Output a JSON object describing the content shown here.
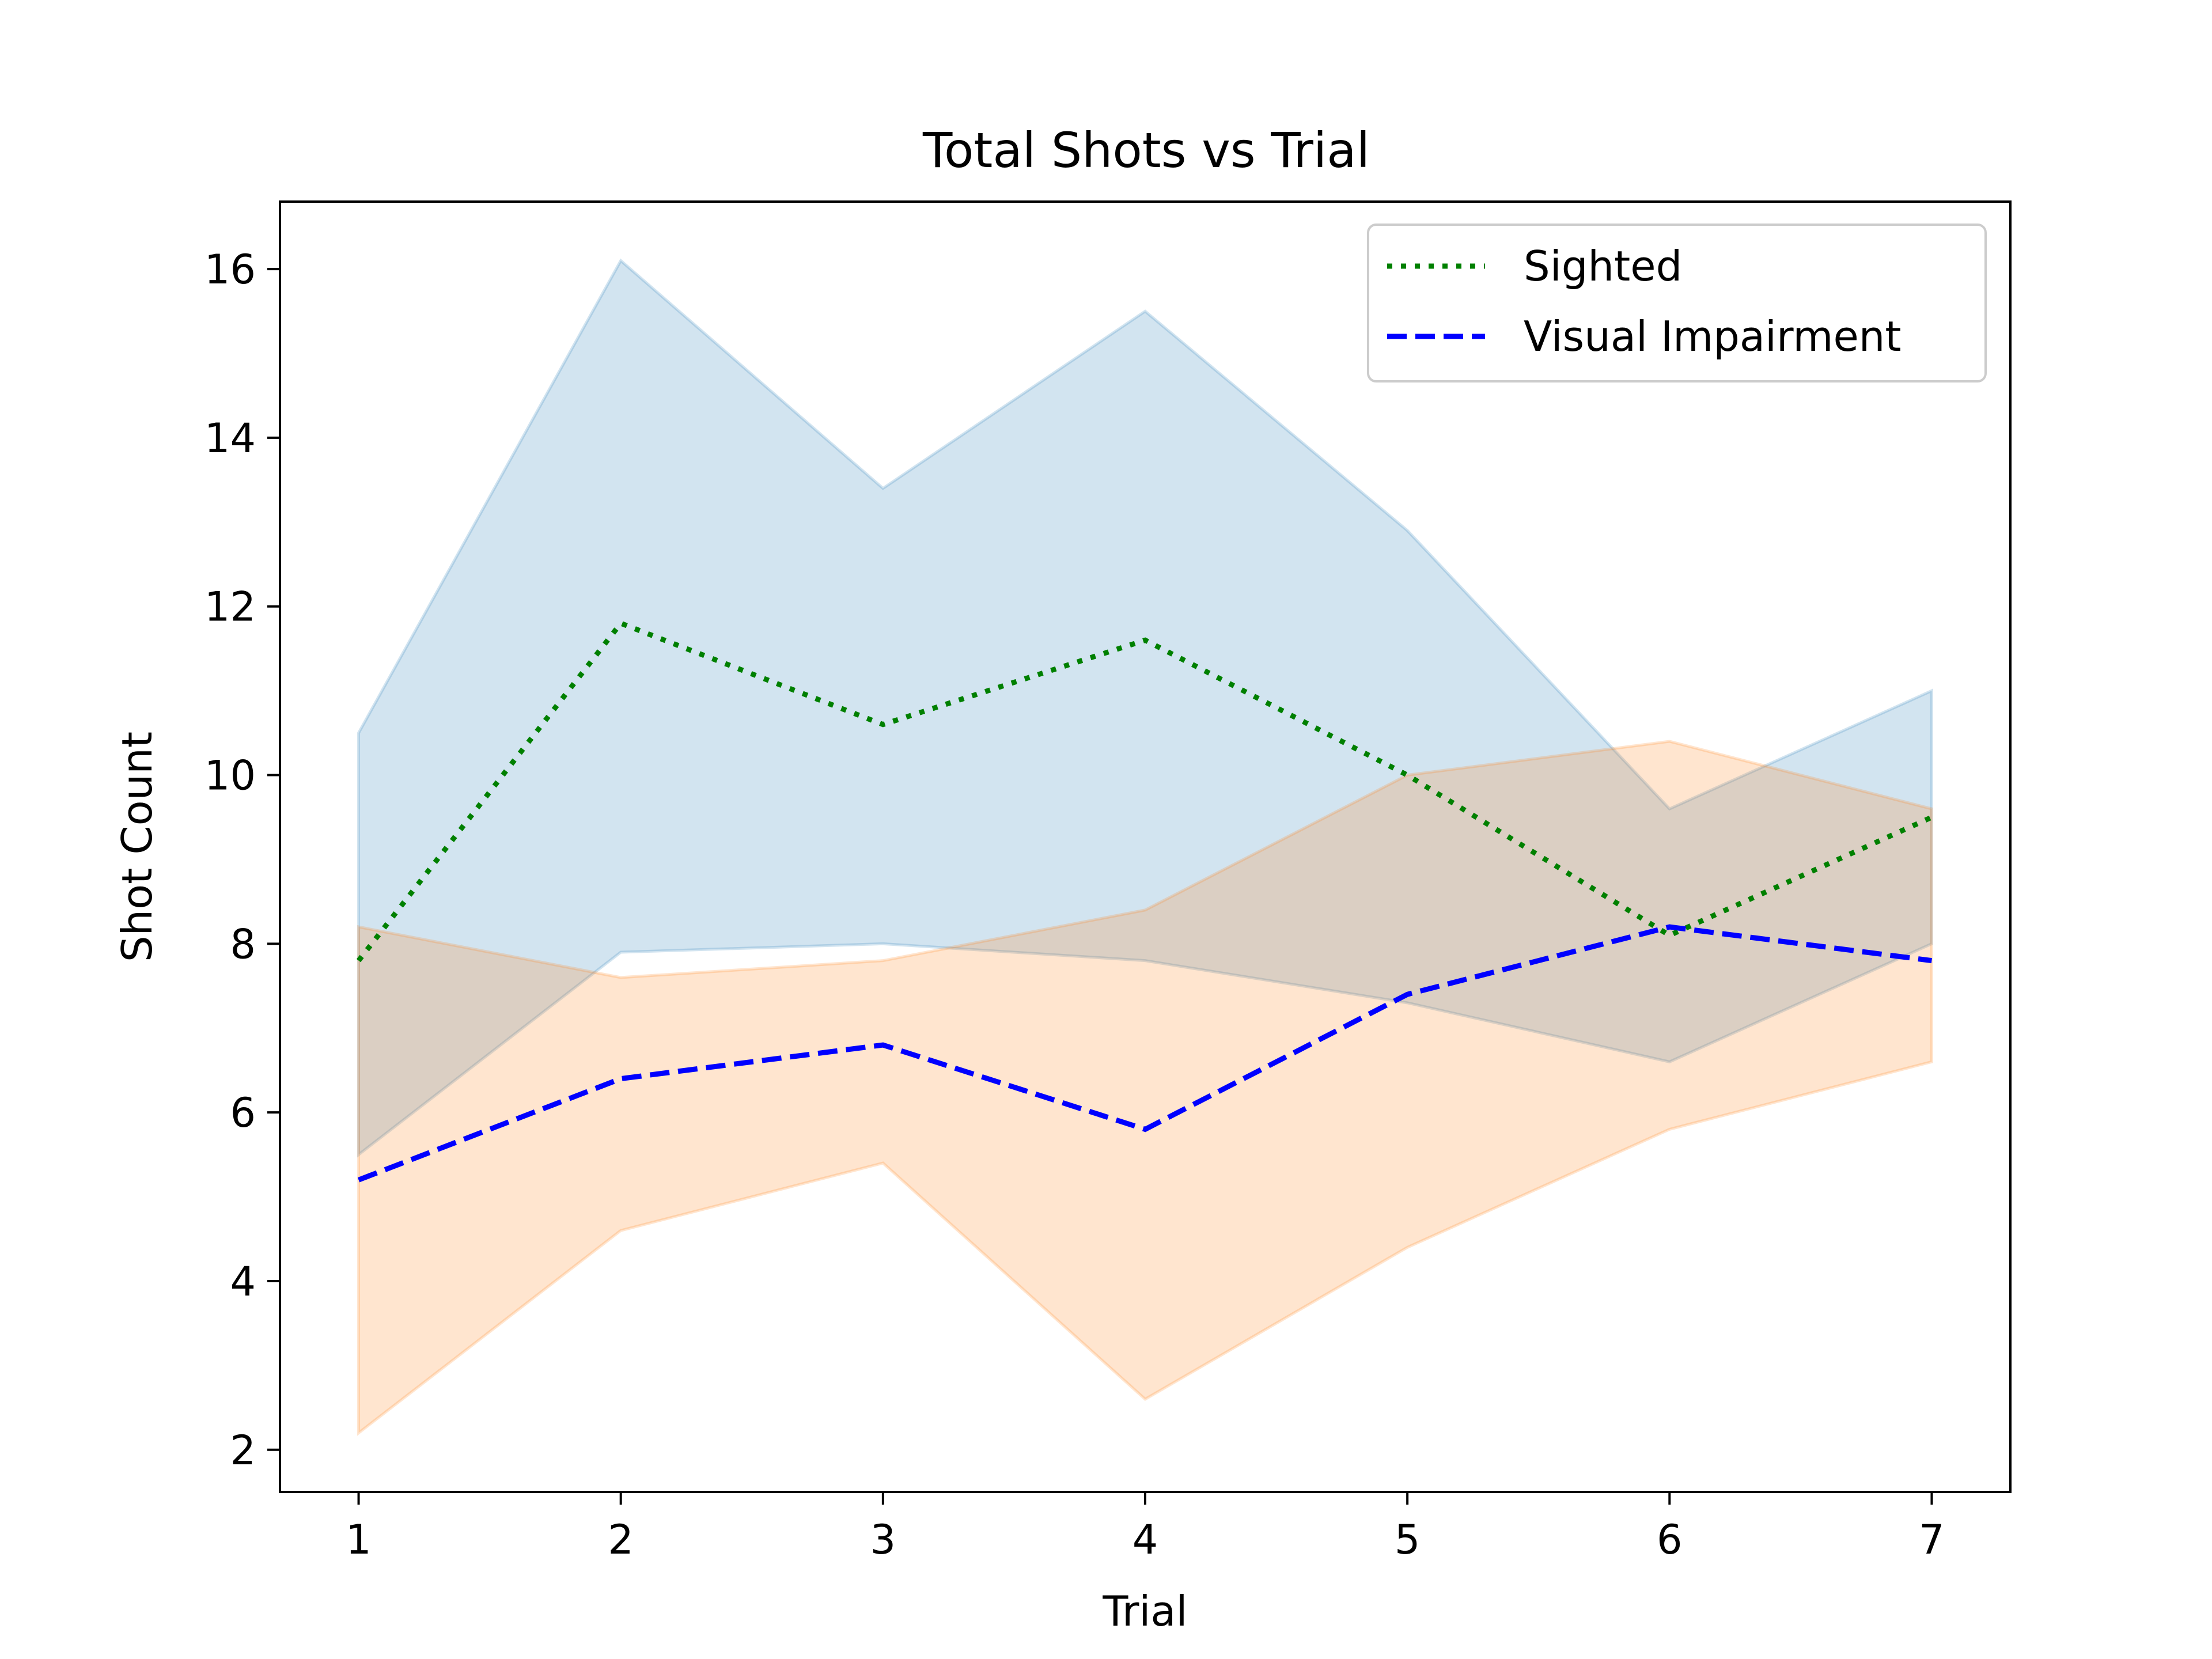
{
  "chart_data": {
    "type": "line",
    "title": "Total Shots vs Trial",
    "xlabel": "Trial",
    "ylabel": "Shot Count",
    "xlim": [
      0.7,
      7.3
    ],
    "ylim": [
      1.5,
      16.8
    ],
    "x": [
      1,
      2,
      3,
      4,
      5,
      6,
      7
    ],
    "xticks": [
      1,
      2,
      3,
      4,
      5,
      6,
      7
    ],
    "xtick_labels": [
      "1",
      "2",
      "3",
      "4",
      "5",
      "6",
      "7"
    ],
    "yticks": [
      2,
      4,
      6,
      8,
      10,
      12,
      14,
      16
    ],
    "ytick_labels": [
      "2",
      "4",
      "6",
      "8",
      "10",
      "12",
      "14",
      "16"
    ],
    "grid": false,
    "legend_position": "top-right",
    "series": [
      {
        "name": "Sighted",
        "style": "dotted",
        "color": "#008000",
        "band_color": "#1f77b4",
        "values": [
          7.8,
          11.8,
          10.6,
          11.6,
          10.0,
          8.1,
          9.5
        ],
        "band_lower": [
          5.5,
          7.9,
          8.0,
          7.8,
          7.3,
          6.6,
          8.0
        ],
        "band_upper": [
          10.5,
          16.1,
          13.4,
          15.5,
          12.9,
          9.6,
          11.0
        ]
      },
      {
        "name": "Visual Impairment",
        "style": "dashed",
        "color": "#0000ff",
        "band_color": "#ff7f0e",
        "values": [
          5.2,
          6.4,
          6.8,
          5.8,
          7.4,
          8.2,
          7.8
        ],
        "band_lower": [
          2.2,
          4.6,
          5.4,
          2.6,
          4.4,
          5.8,
          6.6
        ],
        "band_upper": [
          8.2,
          7.6,
          7.8,
          8.4,
          10.0,
          10.4,
          9.6
        ]
      }
    ]
  }
}
